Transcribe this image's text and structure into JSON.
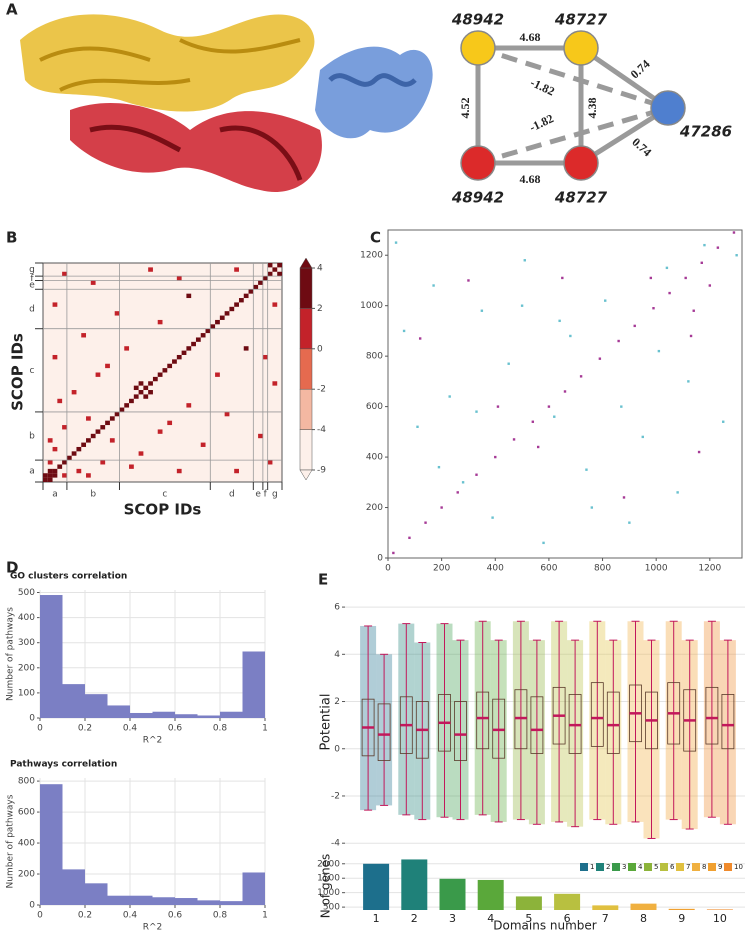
{
  "panel_labels": [
    "A",
    "B",
    "C",
    "D",
    "E"
  ],
  "network": {
    "nodes": [
      {
        "label": "48942",
        "color": "#f7c81a"
      },
      {
        "label": "48727",
        "color": "#f7c81a"
      },
      {
        "label": "47286",
        "color": "#4f7fcf"
      },
      {
        "label": "48942",
        "color": "#dc2a2a"
      },
      {
        "label": "48727",
        "color": "#dc2a2a"
      }
    ],
    "edges": [
      {
        "from": 0,
        "to": 1,
        "label": 4.68,
        "dashed": false
      },
      {
        "from": 0,
        "to": 3,
        "label": 4.52,
        "dashed": false
      },
      {
        "from": 3,
        "to": 4,
        "label": 4.68,
        "dashed": false
      },
      {
        "from": 1,
        "to": 4,
        "label": 4.38,
        "dashed": false
      },
      {
        "from": 0,
        "to": 2,
        "label": -1.82,
        "dashed": true
      },
      {
        "from": 3,
        "to": 2,
        "label": -1.82,
        "dashed": true
      },
      {
        "from": 1,
        "to": 2,
        "label": 0.74,
        "dashed": false
      },
      {
        "from": 4,
        "to": 2,
        "label": 0.74,
        "dashed": false
      }
    ]
  },
  "chart_data": [
    {
      "type": "heatmap",
      "xlabel": "SCOP IDs",
      "ylabel": "SCOP IDs",
      "categories": [
        "a",
        "b",
        "c",
        "d",
        "e",
        "f",
        "g"
      ],
      "group_edges": [
        0,
        5,
        16,
        35,
        44,
        46,
        47,
        50
      ],
      "diagonal": [
        3,
        2.5,
        2.5,
        3,
        2.5,
        2.5,
        2.5,
        2.5,
        2.5,
        2.5,
        2.5,
        2.5,
        2.5,
        2.5,
        2.5,
        2.5,
        2.5,
        2.5,
        2.5,
        2.5,
        3,
        3,
        2.5,
        2.5,
        2.5,
        2.5,
        2.5,
        2.5,
        2.5,
        2.5,
        2.5,
        2.5,
        2.5,
        2.5,
        2.5,
        2.5,
        2.5,
        2.5,
        2.5,
        2.5,
        2.5,
        2.5,
        2.5,
        2.5,
        2.5,
        2.5,
        2.5,
        2.5,
        3,
        3
      ],
      "cells": [
        [
          1,
          0,
          3
        ],
        [
          2,
          1,
          3
        ],
        [
          4,
          1,
          1
        ],
        [
          7,
          2,
          1
        ],
        [
          9,
          1,
          1
        ],
        [
          12,
          4,
          1
        ],
        [
          14,
          9,
          1
        ],
        [
          18,
          3,
          1
        ],
        [
          20,
          6,
          1
        ],
        [
          21,
          19,
          3
        ],
        [
          22,
          20,
          3
        ],
        [
          24,
          11,
          1
        ],
        [
          26,
          13,
          1
        ],
        [
          28,
          2,
          1
        ],
        [
          30,
          17,
          1
        ],
        [
          33,
          8,
          1
        ],
        [
          36,
          24,
          1
        ],
        [
          38,
          15,
          1
        ],
        [
          40,
          2,
          1
        ],
        [
          42,
          30,
          3
        ],
        [
          45,
          10,
          1
        ],
        [
          47,
          4,
          1
        ],
        [
          48,
          22,
          1
        ],
        [
          49,
          47,
          3
        ],
        [
          48,
          40,
          1
        ],
        [
          46,
          28,
          1
        ]
      ],
      "colorbar": {
        "ticks": [
          -9,
          -4,
          -2,
          0,
          2,
          4
        ],
        "colors": [
          "#fdf0ea",
          "#f4b8a2",
          "#e56a4f",
          "#c3222a",
          "#6e0b12"
        ]
      }
    },
    {
      "type": "scatter",
      "xlim": [
        0,
        1320
      ],
      "ylim": [
        0,
        1300
      ],
      "xticks": [
        0,
        200,
        400,
        600,
        800,
        1000,
        1200
      ],
      "yticks": [
        0,
        200,
        400,
        600,
        800,
        1000,
        1200
      ],
      "series": [
        {
          "color": "#a63a96",
          "x": [
            20,
            80,
            140,
            200,
            260,
            330,
            400,
            470,
            540,
            600,
            660,
            720,
            790,
            860,
            920,
            990,
            1050,
            1110,
            1170,
            1230,
            1290,
            120,
            300,
            560,
            880,
            1140,
            1200,
            650,
            410,
            1130,
            1160,
            980
          ],
          "y": [
            20,
            80,
            140,
            200,
            260,
            330,
            400,
            470,
            540,
            600,
            660,
            720,
            790,
            860,
            920,
            990,
            1050,
            1110,
            1170,
            1230,
            1290,
            870,
            1100,
            440,
            240,
            980,
            1080,
            1110,
            600,
            880,
            420,
            1110
          ]
        },
        {
          "color": "#69c1cf",
          "x": [
            30,
            60,
            110,
            170,
            230,
            280,
            350,
            390,
            450,
            510,
            580,
            620,
            680,
            740,
            810,
            870,
            900,
            950,
            1010,
            1080,
            1120,
            1180,
            1250,
            1300,
            500,
            760,
            330,
            1040,
            190,
            640
          ],
          "y": [
            1250,
            900,
            520,
            1080,
            640,
            300,
            980,
            160,
            770,
            1180,
            60,
            560,
            880,
            350,
            1020,
            600,
            140,
            480,
            820,
            260,
            700,
            1240,
            540,
            1200,
            1000,
            200,
            580,
            1150,
            360,
            940
          ]
        }
      ]
    },
    {
      "type": "histogram",
      "title": "GO clusters correlation",
      "xlabel": "R^2",
      "ylabel": "Number of pathways",
      "bins": [
        0,
        0.1,
        0.2,
        0.3,
        0.4,
        0.5,
        0.6,
        0.7,
        0.8,
        0.9,
        1
      ],
      "counts": [
        490,
        135,
        95,
        50,
        20,
        25,
        15,
        10,
        25,
        265
      ],
      "color": "#7b7fc4",
      "xlim": [
        0,
        1
      ],
      "ylim": [
        0,
        510
      ],
      "xticks": [
        0,
        0.2,
        0.4,
        0.6,
        0.8,
        1
      ],
      "yticks": [
        0,
        100,
        200,
        300,
        400,
        500
      ]
    },
    {
      "type": "histogram",
      "title": "Pathways correlation",
      "xlabel": "R^2",
      "ylabel": "Number of pathways",
      "bins": [
        0,
        0.1,
        0.2,
        0.3,
        0.4,
        0.5,
        0.6,
        0.7,
        0.8,
        0.9,
        1
      ],
      "counts": [
        780,
        230,
        140,
        60,
        60,
        50,
        45,
        30,
        25,
        210
      ],
      "color": "#7b7fc4",
      "xlim": [
        0,
        1
      ],
      "ylim": [
        0,
        820
      ],
      "xticks": [
        0,
        0.2,
        0.4,
        0.6,
        0.8,
        1
      ],
      "yticks": [
        0,
        200,
        400,
        600,
        800
      ]
    },
    {
      "type": "box",
      "ylabel": "Potential",
      "ylim": [
        -4.5,
        6.3
      ],
      "yticks": [
        -4,
        -2,
        0,
        2,
        4,
        6
      ],
      "median_color": "#c2185b",
      "colors": [
        "#1d6f8c",
        "#1f6f8c",
        "#1f8179",
        "#1f8179",
        "#3a9a4a",
        "#3a9a4a",
        "#5aa83a",
        "#5aa83a",
        "#8cb33a",
        "#8cb33a",
        "#b8c040",
        "#b8c040",
        "#e0c040",
        "#e0c040",
        "#f0b040",
        "#f0b040",
        "#f0a030",
        "#f0a030",
        "#ef8a2c",
        "#ef8a2c"
      ],
      "whislo": [
        -2.6,
        -2.4,
        -2.8,
        -3.0,
        -2.9,
        -3.0,
        -2.8,
        -3.1,
        -3.0,
        -3.2,
        -3.1,
        -3.3,
        -3.0,
        -3.2,
        -3.1,
        -3.8,
        -3.0,
        -3.4,
        -2.9,
        -3.2
      ],
      "q1": [
        -0.3,
        -0.5,
        -0.2,
        -0.4,
        -0.1,
        -0.5,
        0.0,
        -0.4,
        0.0,
        -0.2,
        0.2,
        -0.2,
        0.1,
        -0.2,
        0.3,
        0.0,
        0.2,
        -0.1,
        0.2,
        0.0
      ],
      "median": [
        0.9,
        0.6,
        1.0,
        0.8,
        1.1,
        0.6,
        1.3,
        0.8,
        1.3,
        0.8,
        1.4,
        1.0,
        1.3,
        1.0,
        1.5,
        1.2,
        1.5,
        1.2,
        1.3,
        1.0
      ],
      "q3": [
        2.1,
        1.9,
        2.2,
        2.0,
        2.3,
        2.0,
        2.4,
        2.1,
        2.5,
        2.2,
        2.6,
        2.3,
        2.8,
        2.4,
        2.7,
        2.4,
        2.8,
        2.5,
        2.6,
        2.3
      ],
      "whishi": [
        5.2,
        4.0,
        5.3,
        4.5,
        5.3,
        4.6,
        5.4,
        4.6,
        5.4,
        4.6,
        5.4,
        4.6,
        5.4,
        4.6,
        5.4,
        4.6,
        5.4,
        4.6,
        5.4,
        4.6
      ]
    },
    {
      "type": "bar",
      "xlabel": "Domains number",
      "ylabel": "N of genes",
      "categories": [
        1,
        2,
        3,
        4,
        5,
        6,
        7,
        8,
        9,
        10
      ],
      "values": [
        2000,
        2150,
        1480,
        1440,
        870,
        960,
        560,
        620,
        440,
        420
      ],
      "colors": [
        "#1d6f8c",
        "#1f8179",
        "#3a9a4a",
        "#5aa83a",
        "#8cb33a",
        "#b8c040",
        "#e0c040",
        "#f0b040",
        "#f0a030",
        "#ef8a2c"
      ],
      "ylim": [
        400,
        2200
      ],
      "yticks": [
        500,
        1000,
        1500,
        2000
      ],
      "legend": "top-right"
    }
  ]
}
